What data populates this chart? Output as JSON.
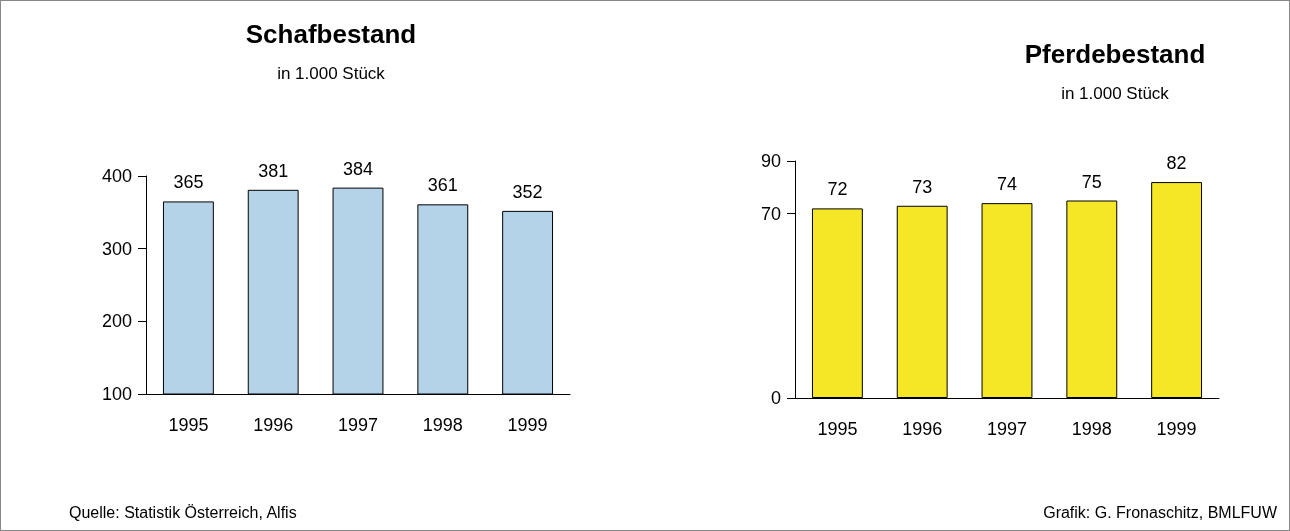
{
  "chart_data": [
    {
      "type": "bar",
      "title": "Schafbestand",
      "subtitle": "in 1.000 Stück",
      "categories": [
        "1995",
        "1996",
        "1997",
        "1998",
        "1999"
      ],
      "values": [
        365,
        381,
        384,
        361,
        352
      ],
      "color": "#b4d3e8",
      "ylim": [
        100,
        400
      ],
      "yticks": [
        100,
        200,
        300,
        400
      ],
      "grid": false,
      "data_labels": true,
      "annotations": [
        "Quelle: Statistik Österreich, Alfis"
      ]
    },
    {
      "type": "bar",
      "title": "Pferdebestand",
      "subtitle": "in 1.000 Stück",
      "categories": [
        "1995",
        "1996",
        "1997",
        "1998",
        "1999"
      ],
      "values": [
        72,
        73,
        74,
        75,
        82
      ],
      "color": "#f5e626",
      "ylim": [
        0,
        90
      ],
      "yticks": [
        0,
        70,
        90
      ],
      "grid": false,
      "data_labels": true,
      "annotations": [
        "Grafik: G. Fronaschitz, BMLFUW"
      ]
    }
  ]
}
